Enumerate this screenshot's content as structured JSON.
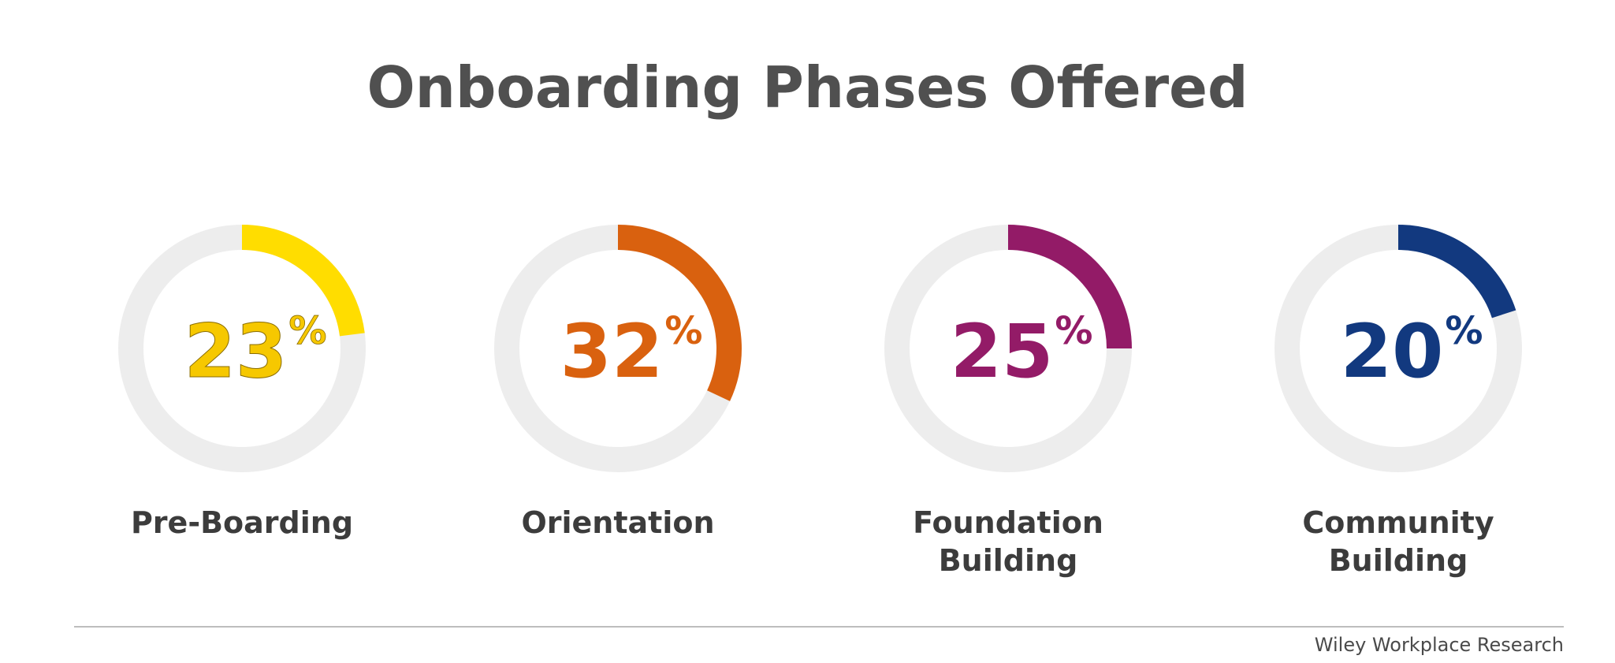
{
  "header": {
    "title": "Onboarding Phases Offered"
  },
  "chart_data": {
    "type": "donut",
    "title": "Onboarding Phases Offered",
    "unit": "%",
    "max": 100,
    "items": [
      {
        "label": "Pre-Boarding",
        "value": 23,
        "value_text": "23",
        "color": "#FFDD00",
        "text_color": "#F6C800",
        "text_stroke": "#8a6d00"
      },
      {
        "label": "Orientation",
        "value": 32,
        "value_text": "32",
        "color": "#D9610F",
        "text_color": "#D9610F",
        "text_stroke": ""
      },
      {
        "label": "Foundation Building",
        "value": 25,
        "value_text": "25",
        "color": "#931B67",
        "text_color": "#931B67",
        "text_stroke": ""
      },
      {
        "label": "Community Building",
        "value": 20,
        "value_text": "20",
        "color": "#12397F",
        "text_color": "#12397F",
        "text_stroke": ""
      }
    ],
    "track_color": "#EDEDED",
    "label_color": "#3C3C3C"
  },
  "footer": {
    "source": "Wiley Workplace Research"
  }
}
